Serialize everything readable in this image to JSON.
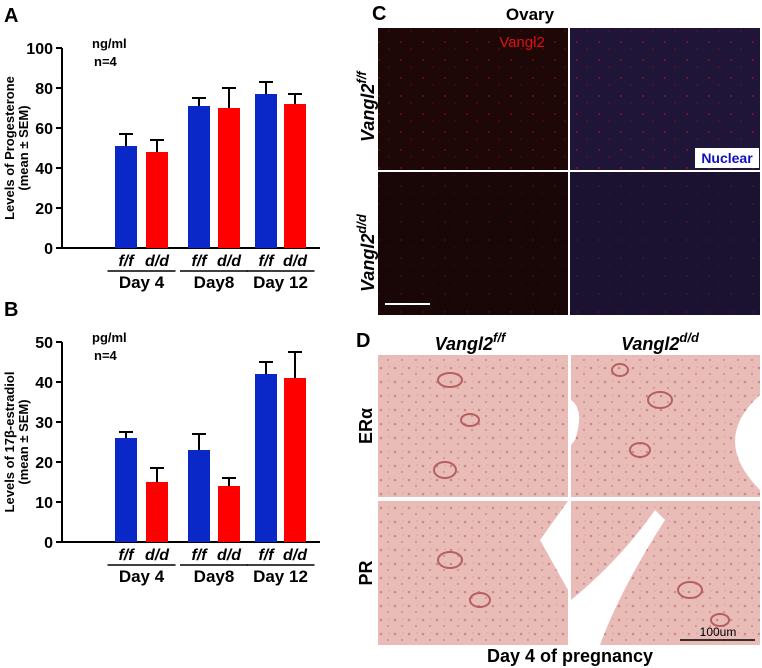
{
  "chart_data": [
    {
      "type": "bar",
      "panel": "A",
      "ylabel": [
        "Levels of Progesterone",
        "(mean ± SEM)"
      ],
      "annotations": [
        "ng/ml",
        "n=4"
      ],
      "categories": [
        "Day 4",
        "Day8",
        "Day 12"
      ],
      "series": [
        {
          "name": "f/f",
          "color": "#0a28c8",
          "values": [
            51,
            71,
            77
          ],
          "errors": [
            6,
            4,
            6
          ]
        },
        {
          "name": "d/d",
          "color": "#ff0000",
          "values": [
            48,
            70,
            72
          ],
          "errors": [
            6,
            10,
            5
          ]
        }
      ],
      "ylim": [
        0,
        100
      ],
      "yticks": [
        0,
        20,
        40,
        60,
        80,
        100
      ]
    },
    {
      "type": "bar",
      "panel": "B",
      "ylabel": [
        "Levels of 17β-estradiol",
        "(mean ± SEM)"
      ],
      "annotations": [
        "pg/ml",
        "n=4"
      ],
      "categories": [
        "Day 4",
        "Day8",
        "Day 12"
      ],
      "series": [
        {
          "name": "f/f",
          "color": "#0a28c8",
          "values": [
            26,
            23,
            42
          ],
          "errors": [
            1.5,
            4,
            3
          ]
        },
        {
          "name": "d/d",
          "color": "#ff0000",
          "values": [
            15,
            14,
            41
          ],
          "errors": [
            3.5,
            2,
            6.5
          ]
        }
      ],
      "ylim": [
        0,
        50
      ],
      "yticks": [
        0,
        10,
        20,
        30,
        40,
        50
      ]
    }
  ],
  "panels": {
    "C": {
      "label": "C",
      "title": "Ovary",
      "stain": "Vangl2",
      "counterstain": "Nuclear",
      "rows": [
        {
          "gene": "Vangl2",
          "genotype": "f/f"
        },
        {
          "gene": "Vangl2",
          "genotype": "d/d"
        }
      ]
    },
    "D": {
      "label": "D",
      "columns": [
        {
          "gene": "Vangl2",
          "genotype": "f/f"
        },
        {
          "gene": "Vangl2",
          "genotype": "d/d"
        }
      ],
      "rows": [
        "ERα",
        "PR"
      ],
      "scale_bar": "100um",
      "caption": "Day 4 of pregnancy"
    }
  }
}
